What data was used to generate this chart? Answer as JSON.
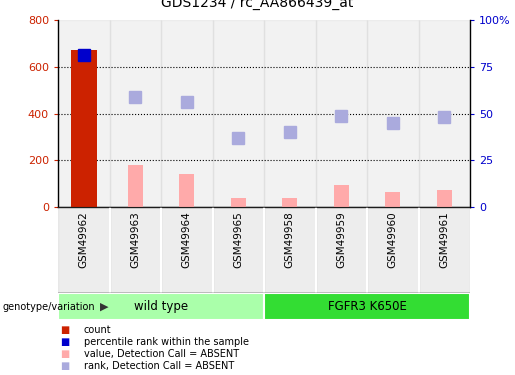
{
  "title": "GDS1234 / rc_AA866439_at",
  "samples": [
    "GSM49962",
    "GSM49963",
    "GSM49964",
    "GSM49965",
    "GSM49958",
    "GSM49959",
    "GSM49960",
    "GSM49961"
  ],
  "count_bar": {
    "index": 0,
    "value": 670,
    "color": "#cc2200"
  },
  "percentile_rank": {
    "index": 0,
    "value": 650,
    "color": "#0000cc"
  },
  "absent_values": [
    null,
    180,
    140,
    38,
    40,
    95,
    65,
    72
  ],
  "absent_ranks": [
    null,
    470,
    450,
    295,
    320,
    390,
    360,
    385
  ],
  "absent_value_color": "#ffaaaa",
  "absent_rank_color": "#aaaadd",
  "left_ylim": [
    0,
    800
  ],
  "right_ylim": [
    0,
    100
  ],
  "left_yticks": [
    0,
    200,
    400,
    600,
    800
  ],
  "right_yticks": [
    0,
    25,
    50,
    75,
    100
  ],
  "right_yticklabels": [
    "0",
    "25",
    "50",
    "75",
    "100%"
  ],
  "grid_values": [
    200,
    400,
    600
  ],
  "groups": [
    {
      "label": "wild type",
      "indices": [
        0,
        1,
        2,
        3
      ],
      "color": "#aaffaa"
    },
    {
      "label": "FGFR3 K650E",
      "indices": [
        4,
        5,
        6,
        7
      ],
      "color": "#33dd33"
    }
  ],
  "group_label_prefix": "genotype/variation",
  "bar_width": 0.5,
  "absent_bar_width": 0.3,
  "marker_size": 8,
  "tick_area_color": "#cccccc",
  "legend_items": [
    {
      "color": "#cc2200",
      "label": "count"
    },
    {
      "color": "#0000cc",
      "label": "percentile rank within the sample"
    },
    {
      "color": "#ffaaaa",
      "label": "value, Detection Call = ABSENT"
    },
    {
      "color": "#aaaadd",
      "label": "rank, Detection Call = ABSENT"
    }
  ]
}
